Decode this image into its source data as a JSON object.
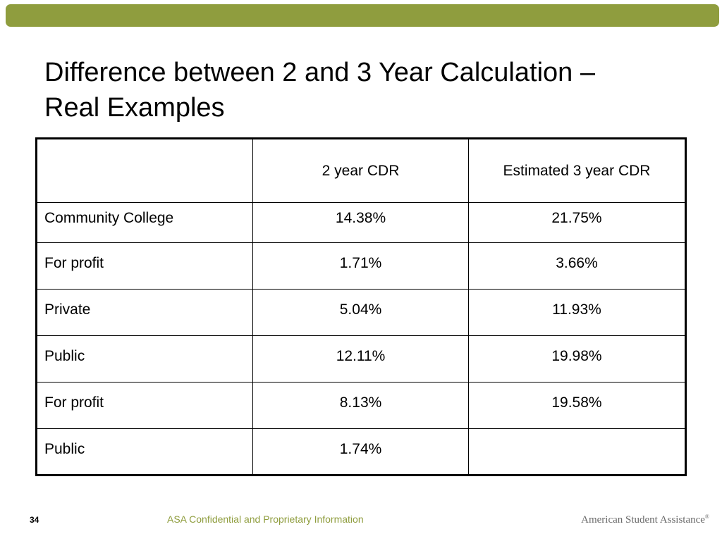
{
  "colors": {
    "accent_bar": "#8f9d3e",
    "footer_text": "#8f9d3e",
    "brand_text": "#6a6a6a"
  },
  "slide": {
    "title_line1": "Difference between 2 and 3 Year Calculation –",
    "title_line2": "Real Examples"
  },
  "table": {
    "headers": [
      "",
      "2 year CDR",
      "Estimated 3 year CDR"
    ],
    "rows": [
      {
        "label": "Community College",
        "two_year": "14.38%",
        "three_year": "21.75%"
      },
      {
        "label": "For profit",
        "two_year": "1.71%",
        "three_year": "3.66%"
      },
      {
        "label": "Private",
        "two_year": "5.04%",
        "three_year": "11.93%"
      },
      {
        "label": "Public",
        "two_year": "12.11%",
        "three_year": "19.98%"
      },
      {
        "label": "For profit",
        "two_year": "8.13%",
        "three_year": "19.58%"
      },
      {
        "label": "Public",
        "two_year": "1.74%",
        "three_year": ""
      }
    ]
  },
  "footer": {
    "page_number": "34",
    "confidential": "ASA Confidential and Proprietary Information",
    "brand": "American Student Assistance",
    "brand_mark": "®"
  }
}
